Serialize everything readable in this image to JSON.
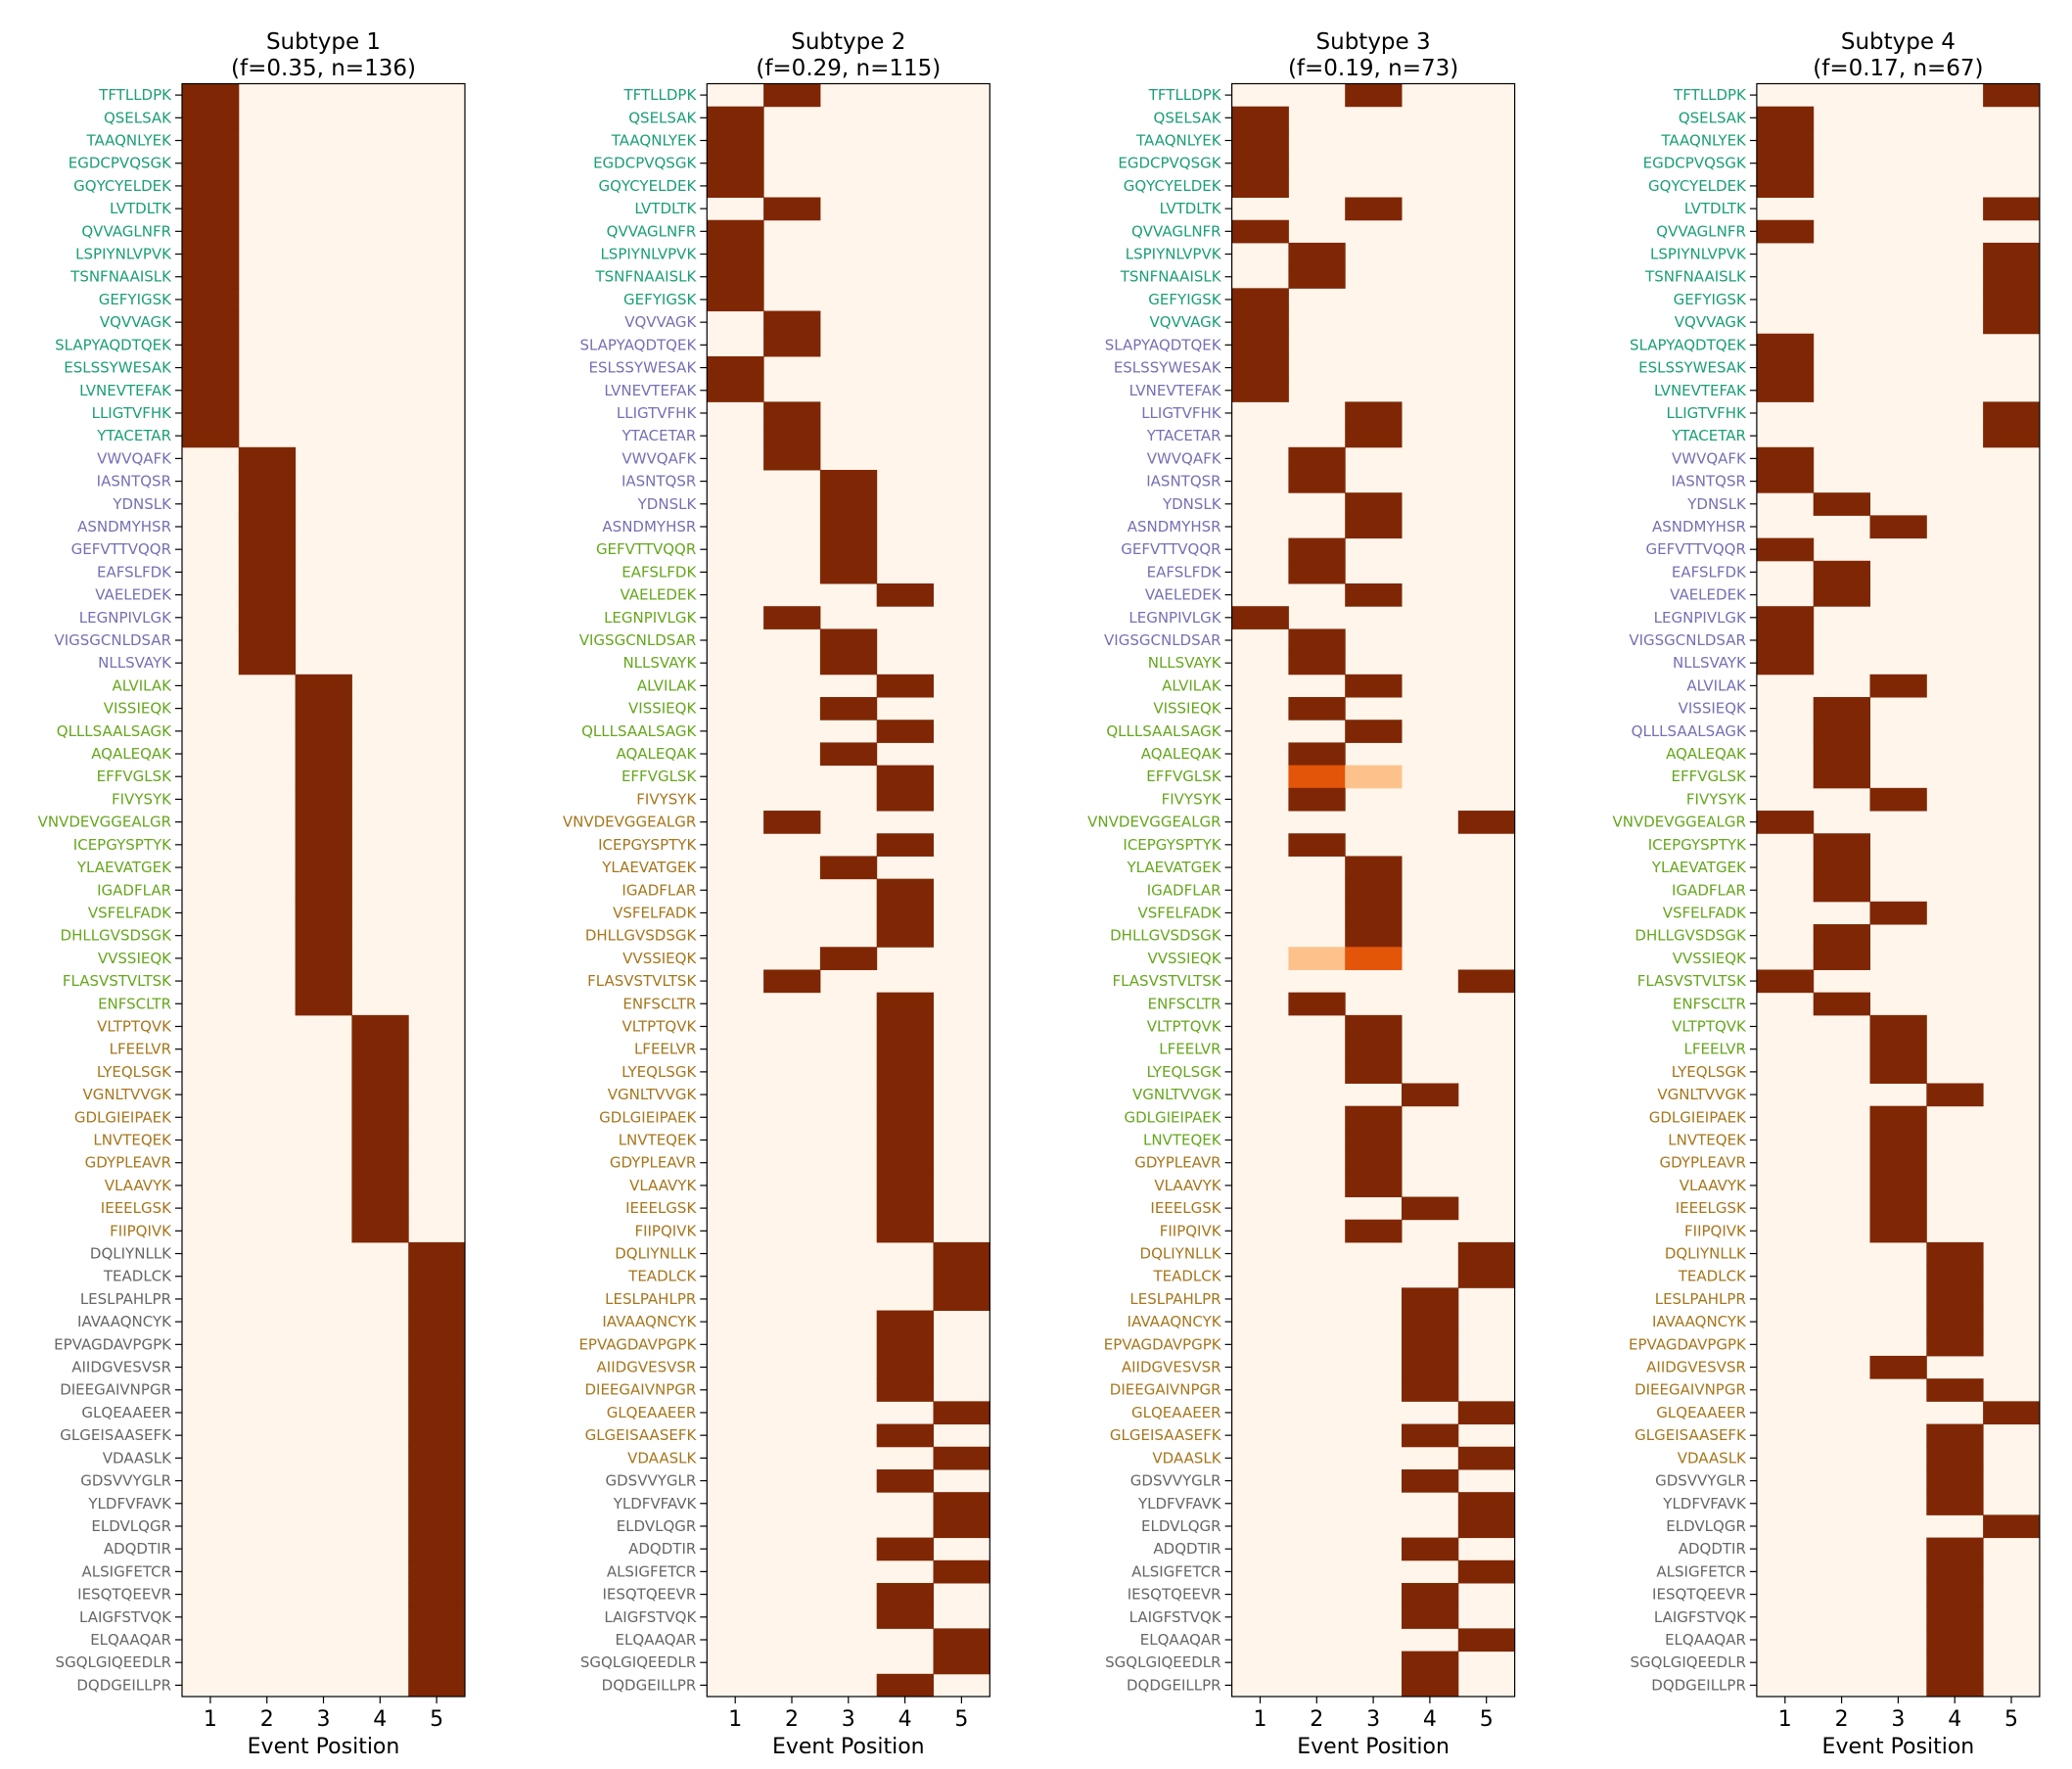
{
  "chart_data": {
    "type": "heatmap",
    "xlabel": "Event Position",
    "x_ticks": [
      "1",
      "2",
      "3",
      "4",
      "5"
    ],
    "colormap": {
      "low": "#fff5eb",
      "high": "#7f2704",
      "stops": [
        "#fff5eb",
        "#fee6ce",
        "#fdd0a2",
        "#fdae6b",
        "#fd8d3c",
        "#f16913",
        "#d94801",
        "#a63603",
        "#7f2704"
      ]
    },
    "label_group_colors": [
      "#1b9e77",
      "#7570b3",
      "#66a61e",
      "#a6761d",
      "#666666"
    ],
    "rows": [
      "TFTLLDPK",
      "QSELSAK",
      "TAAQNLYEK",
      "EGDCPVQSGK",
      "GQYCYELDEK",
      "LVTDLTK",
      "QVVAGLNFR",
      "LSPIYNLVPVK",
      "TSNFNAAISLK",
      "GEFYIGSK",
      "VQVVAGK",
      "SLAPYAQDTQEK",
      "ESLSSYWESAK",
      "LVNEVTEFAK",
      "LLIGTVFHK",
      "YTACETAR",
      "VWVQAFK",
      "IASNTQSR",
      "YDNSLK",
      "ASNDMYHSR",
      "GEFVTTVQQR",
      "EAFSLFDK",
      "VAELEDEK",
      "LEGNPIVLGK",
      "VIGSGCNLDSAR",
      "NLLSVAYK",
      "ALVILAK",
      "VISSIEQK",
      "QLLLSAALSAGK",
      "AQALEQAK",
      "EFFVGLSK",
      "FIVYSYK",
      "VNVDEVGGEALGR",
      "ICEPGYSPTYK",
      "YLAEVATGEK",
      "IGADFLAR",
      "VSFELFADK",
      "DHLLGVSDSGK",
      "VVSSIEQK",
      "FLASVSTVLTSK",
      "ENFSCLTR",
      "VLTPTQVK",
      "LFEELVR",
      "LYEQLSGK",
      "VGNLTVVGK",
      "GDLGIEIPAEK",
      "LNVTEQEK",
      "GDYPLEAVR",
      "VLAAVYK",
      "IEEELGSK",
      "FIIPQIVK",
      "DQLIYNLLK",
      "TEADLCK",
      "LESLPAHLPR",
      "IAVAAQNCYK",
      "EPVAGDAVPGPK",
      "AIIDGVESVSR",
      "DIEEGAIVNPGR",
      "GLQEAAEER",
      "GLGEISAASEFK",
      "VDAASLK",
      "GDSVVYGLR",
      "YLDFVFAVK",
      "ELDVLQGR",
      "ADQDTIR",
      "ALSIGFETCR",
      "IESQTQEEVR",
      "LAIGFSTVQK",
      "ELQAAQAR",
      "SGQLGIQEEDLR",
      "DQDGEILLPR"
    ],
    "panels": [
      {
        "title": "Subtype 1",
        "subtitle": "(f=0.35, n=136)",
        "assigned_position": [
          1,
          1,
          1,
          1,
          1,
          1,
          1,
          1,
          1,
          1,
          1,
          1,
          1,
          1,
          1,
          1,
          2,
          2,
          2,
          2,
          2,
          2,
          2,
          2,
          2,
          2,
          3,
          3,
          3,
          3,
          3,
          3,
          3,
          3,
          3,
          3,
          3,
          3,
          3,
          3,
          3,
          4,
          4,
          4,
          4,
          4,
          4,
          4,
          4,
          4,
          4,
          5,
          5,
          5,
          5,
          5,
          5,
          5,
          5,
          5,
          5,
          5,
          5,
          5,
          5,
          5,
          5,
          5,
          5,
          5,
          5
        ],
        "partial": {}
      },
      {
        "title": "Subtype 2",
        "subtitle": "(f=0.29, n=115)",
        "assigned_position": [
          2,
          1,
          1,
          1,
          1,
          2,
          1,
          1,
          1,
          1,
          2,
          2,
          1,
          1,
          2,
          2,
          2,
          3,
          3,
          3,
          3,
          3,
          4,
          2,
          3,
          3,
          4,
          3,
          4,
          3,
          4,
          4,
          2,
          4,
          3,
          4,
          4,
          4,
          3,
          2,
          4,
          4,
          4,
          4,
          4,
          4,
          4,
          4,
          4,
          4,
          4,
          5,
          5,
          5,
          4,
          4,
          4,
          4,
          5,
          4,
          5,
          4,
          5,
          5,
          4,
          5,
          4,
          4,
          5,
          5,
          4
        ],
        "partial": {}
      },
      {
        "title": "Subtype 3",
        "subtitle": "(f=0.19, n=73)",
        "assigned_position": [
          3,
          1,
          1,
          1,
          1,
          3,
          1,
          2,
          2,
          1,
          1,
          1,
          1,
          1,
          3,
          3,
          2,
          2,
          3,
          3,
          2,
          2,
          3,
          1,
          2,
          2,
          3,
          2,
          3,
          2,
          2,
          2,
          5,
          2,
          3,
          3,
          3,
          3,
          3,
          5,
          2,
          3,
          3,
          3,
          4,
          3,
          3,
          3,
          3,
          4,
          3,
          5,
          5,
          4,
          4,
          4,
          4,
          4,
          5,
          4,
          5,
          4,
          5,
          5,
          4,
          5,
          4,
          4,
          5,
          4,
          4
        ],
        "partial": {
          "EFFVGLSK": [
            0,
            0.7,
            0.3,
            0,
            0
          ],
          "VVSSIEQK": [
            0,
            0.3,
            0.7,
            0,
            0
          ]
        }
      },
      {
        "title": "Subtype 4",
        "subtitle": "(f=0.17, n=67)",
        "assigned_position": [
          5,
          1,
          1,
          1,
          1,
          5,
          1,
          5,
          5,
          5,
          5,
          1,
          1,
          1,
          5,
          5,
          1,
          1,
          2,
          3,
          1,
          2,
          2,
          1,
          1,
          1,
          3,
          2,
          2,
          2,
          2,
          3,
          1,
          2,
          2,
          2,
          3,
          2,
          2,
          1,
          2,
          3,
          3,
          3,
          4,
          3,
          3,
          3,
          3,
          3,
          3,
          4,
          4,
          4,
          4,
          4,
          3,
          4,
          5,
          4,
          4,
          4,
          4,
          5,
          4,
          4,
          4,
          4,
          4,
          4,
          4
        ],
        "partial": {}
      }
    ]
  }
}
